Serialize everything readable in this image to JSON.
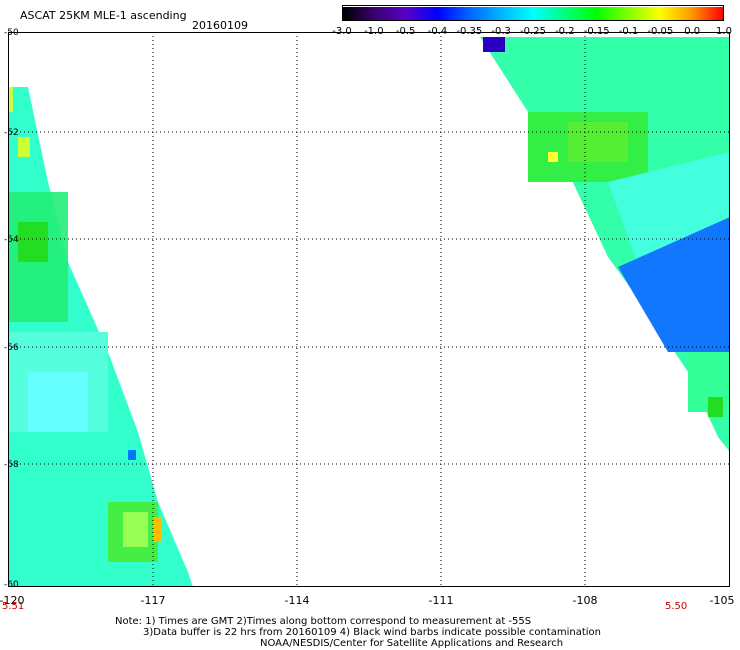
{
  "header": {
    "title": "ASCAT 25KM MLE-1 ascending",
    "date": "20160109"
  },
  "colorbar": {
    "labels": [
      "-3.0",
      "-1.0",
      "-0.5",
      "-0.4",
      "-0.35",
      "-0.3",
      "-0.25",
      "-0.2",
      "-0.15",
      "-0.1",
      "-0.05",
      "0.0",
      "1.0"
    ],
    "colors": [
      "#000000",
      "#3a0070",
      "#5a00c8",
      "#0000ff",
      "#0066ff",
      "#00b4ff",
      "#00ffff",
      "#00ff80",
      "#00ff00",
      "#80ff00",
      "#ffff00",
      "#ff9900",
      "#ff0000"
    ]
  },
  "map": {
    "lat_labels": [
      "-50",
      "-52",
      "-54",
      "-56",
      "-58",
      "-60"
    ],
    "lon_labels": [
      "-120",
      "-117",
      "-114",
      "-111",
      "-108",
      "-105"
    ],
    "lon_range": [
      -120,
      -105
    ],
    "lat_range": [
      -60,
      -50
    ],
    "swath_times": {
      "left": "5.51",
      "right": "5.50"
    }
  },
  "notes": [
    "Note: 1) Times are GMT 2)Times along bottom correspond to measurement at -55S",
    "3)Data buffer is 22 hrs from 20160109 4) Black wind barbs indicate possible contamination",
    "NOAA/NESDIS/Center for Satellite Applications and Research"
  ]
}
